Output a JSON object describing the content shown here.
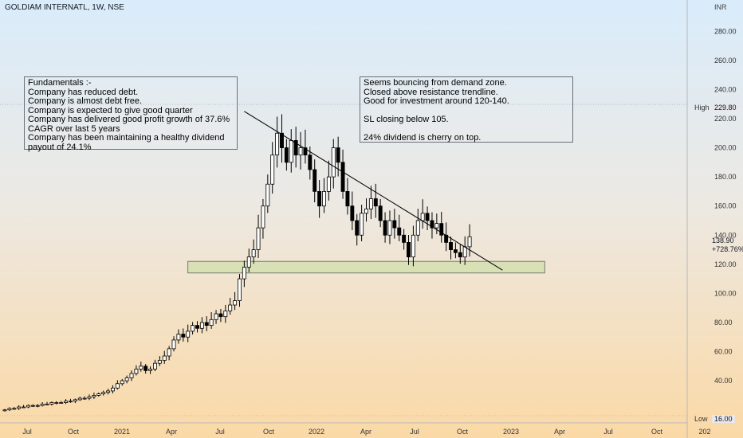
{
  "header": {
    "symbol": "GOLDIAM INTERNATL, 1W, NSE",
    "currency": "INR"
  },
  "notes": {
    "fundamentals": [
      "Fundamentals :-",
      "Company has reduced debt.",
      "Company is almost debt free.",
      "Company is expected to give good quarter",
      "Company has delivered good profit growth of 37.6%",
      "CAGR over last 5 years",
      "Company has been maintaining a healthy dividend",
      "payout of 24.1%"
    ],
    "analysis": [
      "Seems bouncing from demand zone.",
      "Closed above resistance trendline.",
      "Good for investment around 120-140.",
      "",
      "SL closing below 105.",
      "",
      "24% dividend is cherry on top."
    ]
  },
  "price_tags": {
    "high_label": "High",
    "high_value": "229.80",
    "low_label": "Low",
    "low_value": "16.00",
    "last_value": "138.90",
    "last_change": "+728.76%"
  },
  "colors": {
    "up": "#ffffff",
    "down": "#000000",
    "zone_fill": "#d4e0b0",
    "trendline": "#000000"
  },
  "chart_data": {
    "type": "candlestick",
    "title": "GOLDIAM INTERNATL, 1W, NSE",
    "y_axis": {
      "unit": "INR",
      "ticks": [
        40,
        60,
        80,
        100,
        120,
        140,
        160,
        180,
        200,
        220,
        240,
        260,
        280
      ],
      "range": [
        16,
        296
      ]
    },
    "x_axis": {
      "ticks": [
        "Jul",
        "Oct",
        "2021",
        "Apr",
        "Jul",
        "Oct",
        "2022",
        "Apr",
        "Jul",
        "Oct",
        "2023",
        "Apr",
        "Jul",
        "Oct",
        "202"
      ]
    },
    "high": 229.8,
    "low": 16.0,
    "last": 138.9,
    "change_pct": "+728.76%",
    "closes": [
      20,
      21,
      21,
      22,
      22,
      23,
      23,
      23,
      24,
      24,
      25,
      25,
      25,
      26,
      26,
      27,
      28,
      28,
      29,
      30,
      31,
      32,
      33,
      35,
      38,
      40,
      42,
      45,
      48,
      50,
      47,
      48,
      52,
      54,
      57,
      62,
      68,
      72,
      70,
      74,
      78,
      76,
      80,
      78,
      82,
      86,
      84,
      88,
      92,
      95,
      110,
      118,
      125,
      130,
      145,
      160,
      175,
      195,
      210,
      200,
      190,
      205,
      195,
      200,
      195,
      185,
      170,
      160,
      170,
      180,
      200,
      190,
      170,
      160,
      150,
      140,
      155,
      158,
      165,
      160,
      150,
      140,
      150,
      145,
      140,
      135,
      125,
      140,
      150,
      155,
      150,
      145,
      148,
      140,
      135,
      130,
      128,
      125,
      132,
      138.9
    ],
    "trendline": {
      "start": [
        51,
        225
      ],
      "end": [
        106,
        116
      ]
    },
    "demand_zone": {
      "start_week": 39,
      "end_week": 115,
      "y_min": 114,
      "y_max": 122
    }
  }
}
